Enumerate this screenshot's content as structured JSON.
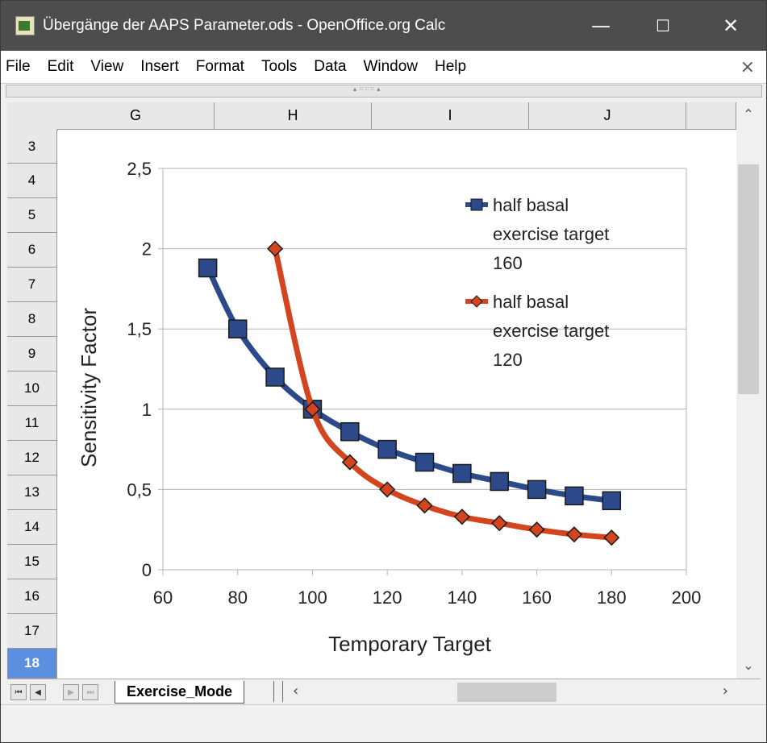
{
  "window": {
    "title": "Übergänge der AAPS Parameter.ods - OpenOffice.org Calc",
    "minimize": "—",
    "maximize": "☐",
    "close": "✕"
  },
  "menu": {
    "items": [
      "File",
      "Edit",
      "View",
      "Insert",
      "Format",
      "Tools",
      "Data",
      "Window",
      "Help"
    ],
    "close_doc": "×"
  },
  "columns": [
    "G",
    "H",
    "I",
    "J"
  ],
  "rows": [
    "3",
    "4",
    "5",
    "6",
    "7",
    "8",
    "9",
    "10",
    "11",
    "12",
    "13",
    "14",
    "15",
    "16",
    "17",
    "18"
  ],
  "active_row": "18",
  "sheet_tabs": {
    "active": "Exercise_Mode",
    "first": "⏮",
    "prev": "◀",
    "next": "▶",
    "last": "⏭"
  },
  "chart_data": {
    "type": "line",
    "xlabel": "Temporary Target",
    "ylabel": "Sensitivity Factor",
    "xlim": [
      60,
      200
    ],
    "ylim": [
      0,
      2.5
    ],
    "xticks": [
      "60",
      "80",
      "100",
      "120",
      "140",
      "160",
      "180",
      "200"
    ],
    "yticks": [
      "0",
      "0,5",
      "1",
      "1,5",
      "2",
      "2,5"
    ],
    "grid": true,
    "legend_position": "top-right",
    "series": [
      {
        "name": "half basal exercise target 160",
        "legend_lines": [
          "half basal",
          "exercise target",
          "160"
        ],
        "color": "#2c4a8a",
        "marker": "square",
        "x": [
          72,
          80,
          90,
          100,
          110,
          120,
          130,
          140,
          150,
          160,
          170,
          180
        ],
        "y": [
          1.88,
          1.5,
          1.2,
          1.0,
          0.86,
          0.75,
          0.67,
          0.6,
          0.55,
          0.5,
          0.46,
          0.43
        ]
      },
      {
        "name": "half basal exercise target 120",
        "legend_lines": [
          "half basal",
          "exercise target",
          "120"
        ],
        "color": "#d2451e",
        "marker": "diamond",
        "x": [
          90,
          100,
          110,
          120,
          130,
          140,
          150,
          160,
          170,
          180
        ],
        "y": [
          2.0,
          1.0,
          0.67,
          0.5,
          0.4,
          0.33,
          0.29,
          0.25,
          0.22,
          0.2
        ]
      }
    ]
  }
}
